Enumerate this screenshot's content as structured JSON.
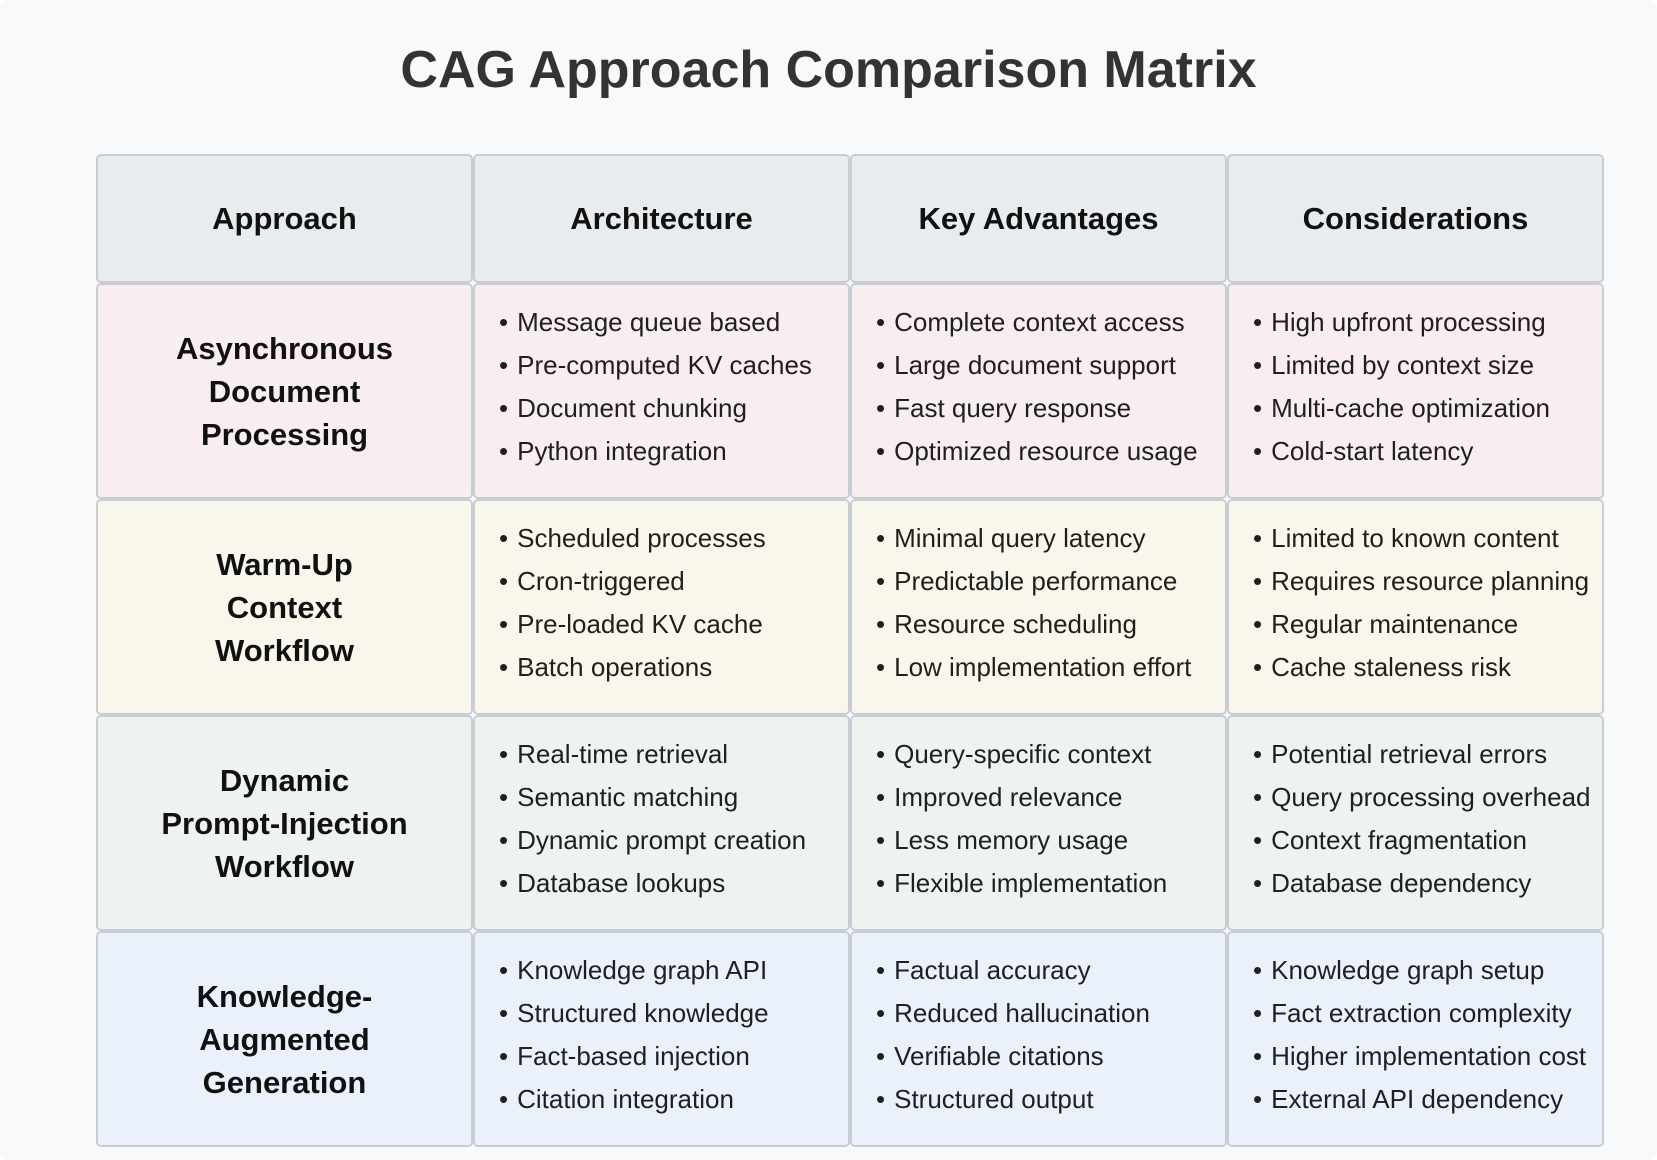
{
  "title": "CAG Approach Comparison Matrix",
  "headers": [
    "Approach",
    "Architecture",
    "Key Advantages",
    "Considerations"
  ],
  "colors": {
    "header_bg": "#e9ecef",
    "row_backgrounds": [
      "#f8eef0",
      "#f9f7ec",
      "#eef3f0",
      "#ebf1fb"
    ],
    "border": "#c8cdd3"
  },
  "rows": [
    {
      "approach_lines": [
        "Asynchronous",
        "Document",
        "Processing"
      ],
      "architecture": [
        "Message queue based",
        "Pre-computed KV caches",
        "Document chunking",
        "Python integration"
      ],
      "advantages": [
        "Complete context access",
        "Large document support",
        "Fast query response",
        "Optimized resource usage"
      ],
      "considerations": [
        "High upfront processing",
        "Limited by context size",
        "Multi-cache optimization",
        "Cold-start latency"
      ]
    },
    {
      "approach_lines": [
        "Warm-Up",
        "Context",
        "Workflow"
      ],
      "architecture": [
        "Scheduled processes",
        "Cron-triggered",
        "Pre-loaded KV cache",
        "Batch operations"
      ],
      "advantages": [
        "Minimal query latency",
        "Predictable performance",
        "Resource scheduling",
        "Low implementation effort"
      ],
      "considerations": [
        "Limited to known content",
        "Requires resource planning",
        "Regular maintenance",
        "Cache staleness risk"
      ]
    },
    {
      "approach_lines": [
        "Dynamic",
        "Prompt-Injection",
        "Workflow"
      ],
      "architecture": [
        "Real-time retrieval",
        "Semantic matching",
        "Dynamic prompt creation",
        "Database lookups"
      ],
      "advantages": [
        "Query-specific context",
        "Improved relevance",
        "Less memory usage",
        "Flexible implementation"
      ],
      "considerations": [
        "Potential retrieval errors",
        "Query processing overhead",
        "Context fragmentation",
        "Database dependency"
      ]
    },
    {
      "approach_lines": [
        "Knowledge-",
        "Augmented",
        "Generation"
      ],
      "architecture": [
        "Knowledge graph API",
        "Structured knowledge",
        "Fact-based injection",
        "Citation integration"
      ],
      "advantages": [
        "Factual accuracy",
        "Reduced hallucination",
        "Verifiable citations",
        "Structured output"
      ],
      "considerations": [
        "Knowledge graph setup",
        "Fact extraction complexity",
        "Higher implementation cost",
        "External API dependency"
      ]
    }
  ]
}
